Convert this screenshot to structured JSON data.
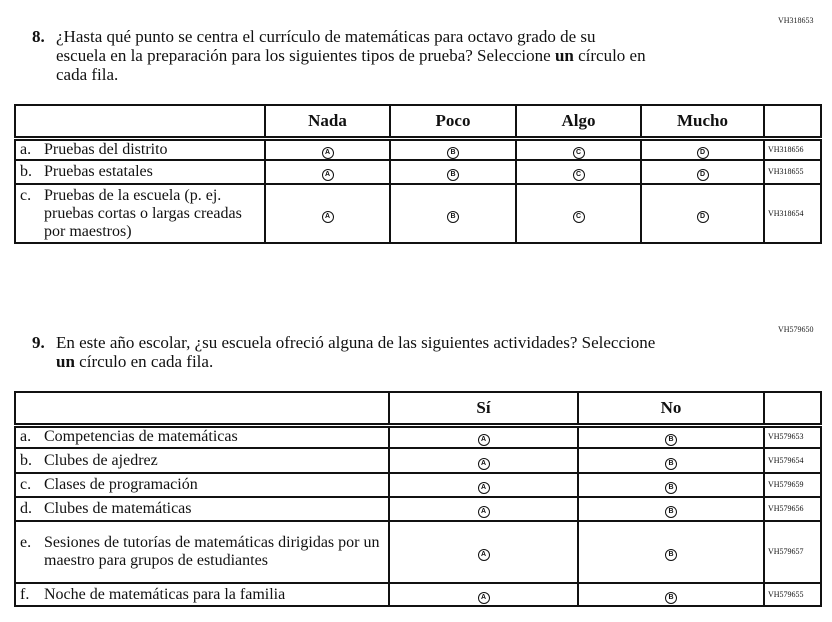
{
  "q8": {
    "code": "VH318653",
    "number": "8.",
    "text_line1": "¿Hasta qué punto se centra el currículo de matemáticas para octavo grado de su",
    "text_line2a": "escuela en la preparación para los siguientes tipos de prueba? Seleccione ",
    "text_line2b": "un",
    "text_line2c": " círculo en",
    "text_line3": "cada fila.",
    "columns": [
      "Nada",
      "Poco",
      "Algo",
      "Mucho"
    ],
    "rows": [
      {
        "letter": "a.",
        "label": "Pruebas del distrito",
        "code": "VH318656"
      },
      {
        "letter": "b.",
        "label": "Pruebas estatales",
        "code": "VH318655"
      },
      {
        "letter": "c.",
        "label": "Pruebas de la escuela (p. ej. pruebas cortas o largas creadas por maestros)",
        "code": "VH318654"
      }
    ],
    "options": [
      "A",
      "B",
      "C",
      "D"
    ]
  },
  "q9": {
    "code": "VH579650",
    "number": "9.",
    "text_line1": "En este año escolar, ¿su escuela ofreció alguna de las siguientes actividades? Seleccione",
    "text_line2a": "un",
    "text_line2b": " círculo en cada fila.",
    "columns": [
      "Sí",
      "No"
    ],
    "rows": [
      {
        "letter": "a.",
        "label": "Competencias de matemáticas",
        "code": "VH579653"
      },
      {
        "letter": "b.",
        "label": "Clubes de ajedrez",
        "code": "VH579654"
      },
      {
        "letter": "c.",
        "label": "Clases de programación",
        "code": "VH579659"
      },
      {
        "letter": "d.",
        "label": "Clubes de matemáticas",
        "code": "VH579656"
      },
      {
        "letter": "e.",
        "label": "Sesiones de tutorías de matemáticas dirigidas por un maestro para grupos de estudiantes",
        "code": "VH579657"
      },
      {
        "letter": "f.",
        "label": "Noche de matemáticas para la familia",
        "code": "VH579655"
      }
    ],
    "options": [
      "A",
      "B"
    ]
  }
}
